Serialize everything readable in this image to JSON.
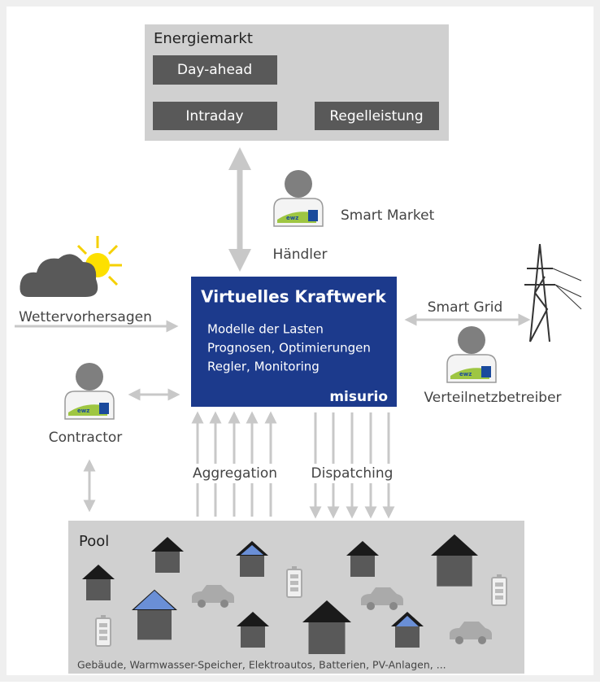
{
  "market": {
    "title": "Energiemarkt",
    "products": [
      "Day-ahead",
      "Intraday",
      "Regelleistung"
    ]
  },
  "trader": {
    "role": "Händler",
    "label": "Smart Market"
  },
  "vpp": {
    "title": "Virtuelles Kraftwerk",
    "lines": [
      "Modelle der Lasten",
      "Prognosen, Optimierungen",
      "Regler, Monitoring"
    ],
    "brand": "misurio"
  },
  "weather": "Wettervorhersagen",
  "grid": {
    "label": "Smart Grid",
    "role": "Verteilnetzbetreiber"
  },
  "contractor": "Contractor",
  "badge": "ewz",
  "flows": [
    "Aggregation",
    "Dispatching"
  ],
  "pool": {
    "title": "Pool",
    "footer": "Gebäude, Warmwasser-Speicher, Elektroautos, Batterien, PV-Anlagen, ..."
  }
}
